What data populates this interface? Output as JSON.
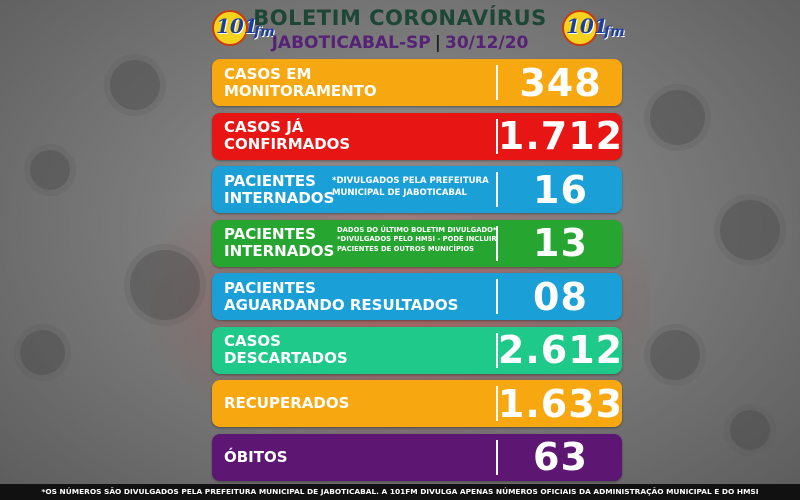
{
  "header": {
    "title": "BOLETIM CORONAVÍRUS",
    "city": "JABOTICABAL-SP",
    "separator": "|",
    "date": "30/12/20",
    "logo_number": "101",
    "logo_suffix": "fm"
  },
  "rows": [
    {
      "label_1": "CASOS EM",
      "label_2": "MONITORAMENTO",
      "value": "348",
      "color": "#f7a810"
    },
    {
      "label_1": "CASOS JÁ",
      "label_2": "CONFIRMADOS",
      "value": "1.712",
      "color": "#e81515"
    },
    {
      "label_1": "PACIENTES",
      "label_2": "INTERNADOS",
      "value": "16",
      "color": "#1a9fd6",
      "note_1": "*DIVULGADOS PELA PREFEITURA",
      "note_2": "MUNICIPAL DE JABOTICABAL"
    },
    {
      "label_1": "PACIENTES",
      "label_2": "INTERNADOS",
      "value": "13",
      "color": "#26a630",
      "note_1": "DADOS DO ÚLTIMO BOLETIM DIVULGADO*",
      "note_2": "*DIVULGADOS PELO HMSI - PODE INCLUIR",
      "note_3": "PACIENTES DE OUTROS MUNICÍPIOS"
    },
    {
      "label_1": "PACIENTES",
      "label_2": "AGUARDANDO RESULTADOS",
      "value": "08",
      "color": "#1a9fd6"
    },
    {
      "label_1": "CASOS",
      "label_2": "DESCARTADOS",
      "value": "2.612",
      "color": "#1ec98a"
    },
    {
      "label_1": "RECUPERADOS",
      "value": "1.633",
      "color": "#f7a810"
    },
    {
      "label_1": "ÓBITOS",
      "value": "63",
      "color": "#5d1772"
    }
  ],
  "footer": {
    "text": "*OS NÚMEROS SÃO DIVULGADOS PELA PREFEITURA MUNICIPAL DE JABOTICABAL. A 101FM DIVULGA APENAS NÚMEROS OFICIAIS DA ADMINISTRAÇÃO MUNICIPAL E DO HMSI"
  }
}
